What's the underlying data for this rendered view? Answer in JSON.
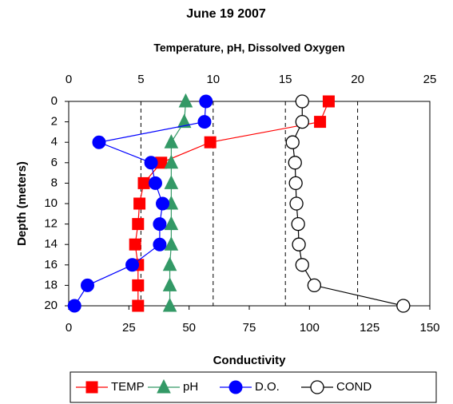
{
  "chart_data": {
    "type": "line",
    "title": "June 19 2007",
    "xlabel": "Temperature, pH, Dissolved Oxygen",
    "x2label": "Conductivity",
    "ylabel": "Depth (meters)",
    "y": [
      0,
      2,
      4,
      6,
      8,
      10,
      12,
      14,
      16,
      18,
      20
    ],
    "ylim": [
      0,
      20
    ],
    "yticks": [
      0,
      2,
      4,
      6,
      8,
      10,
      12,
      14,
      16,
      18,
      20
    ],
    "y_inverted": true,
    "xlim": [
      0,
      25
    ],
    "xticks": [
      0,
      5,
      10,
      15,
      20,
      25
    ],
    "x2lim": [
      0,
      150
    ],
    "x2ticks": [
      0,
      25,
      50,
      75,
      100,
      125,
      150
    ],
    "grid": "dashed",
    "series": [
      {
        "name": "TEMP",
        "color": "#ff0000",
        "marker": "square",
        "values": [
          18.0,
          17.4,
          9.8,
          6.4,
          5.2,
          4.9,
          4.8,
          4.6,
          4.8,
          4.8,
          4.8
        ]
      },
      {
        "name": "pH",
        "color": "#339966",
        "marker": "triangle",
        "values": [
          8.1,
          8.0,
          7.1,
          7.1,
          7.1,
          7.1,
          7.1,
          7.1,
          7.0,
          7.0,
          7.0
        ]
      },
      {
        "name": "D.O.",
        "color": "#0000ff",
        "marker": "circle",
        "values": [
          9.5,
          9.4,
          2.1,
          5.7,
          6.0,
          6.5,
          6.3,
          6.3,
          4.4,
          1.3,
          0.4
        ]
      },
      {
        "name": "COND",
        "color": "#000000",
        "marker": "open-circle",
        "axis": "x2",
        "values": [
          97,
          97,
          93,
          94,
          94.3,
          94.6,
          95.3,
          95.6,
          97,
          102,
          139
        ]
      }
    ]
  }
}
